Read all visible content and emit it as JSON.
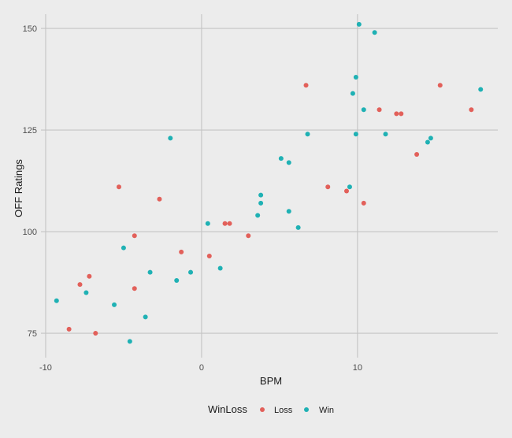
{
  "chart_data": {
    "type": "scatter",
    "title": "",
    "xlabel": "BPM",
    "ylabel": "OFF Ratings",
    "xlim": [
      -10.3,
      19
    ],
    "ylim": [
      69,
      153.5
    ],
    "x_ticks": [
      -10,
      0,
      10
    ],
    "y_ticks": [
      75,
      100,
      125,
      150
    ],
    "grid": true,
    "legend": {
      "title": "WinLoss",
      "position": "bottom"
    },
    "series": [
      {
        "name": "Loss",
        "color": "#e2605a",
        "points": [
          {
            "x": -8.5,
            "y": 76
          },
          {
            "x": -6.8,
            "y": 75
          },
          {
            "x": -7.8,
            "y": 87
          },
          {
            "x": -7.2,
            "y": 89
          },
          {
            "x": -4.3,
            "y": 86
          },
          {
            "x": -4.3,
            "y": 99
          },
          {
            "x": -1.3,
            "y": 95
          },
          {
            "x": -5.3,
            "y": 111
          },
          {
            "x": -2.7,
            "y": 108
          },
          {
            "x": 0.5,
            "y": 94
          },
          {
            "x": 1.5,
            "y": 102
          },
          {
            "x": 1.8,
            "y": 102
          },
          {
            "x": 3.0,
            "y": 99
          },
          {
            "x": 6.7,
            "y": 136
          },
          {
            "x": 8.1,
            "y": 111
          },
          {
            "x": 9.3,
            "y": 110
          },
          {
            "x": 10.4,
            "y": 107
          },
          {
            "x": 11.4,
            "y": 130
          },
          {
            "x": 12.5,
            "y": 129
          },
          {
            "x": 12.8,
            "y": 129
          },
          {
            "x": 13.8,
            "y": 119
          },
          {
            "x": 15.3,
            "y": 136
          },
          {
            "x": 17.3,
            "y": 130
          }
        ]
      },
      {
        "name": "Win",
        "color": "#1fb1b4",
        "points": [
          {
            "x": -9.3,
            "y": 83
          },
          {
            "x": -7.4,
            "y": 85
          },
          {
            "x": -5.6,
            "y": 82
          },
          {
            "x": -5.0,
            "y": 96
          },
          {
            "x": -3.6,
            "y": 79
          },
          {
            "x": -4.6,
            "y": 73
          },
          {
            "x": -3.3,
            "y": 90
          },
          {
            "x": -2.0,
            "y": 123
          },
          {
            "x": -1.6,
            "y": 88
          },
          {
            "x": -0.7,
            "y": 90
          },
          {
            "x": 0.4,
            "y": 102
          },
          {
            "x": 1.2,
            "y": 91
          },
          {
            "x": 3.6,
            "y": 104
          },
          {
            "x": 3.8,
            "y": 107
          },
          {
            "x": 3.8,
            "y": 109
          },
          {
            "x": 5.1,
            "y": 118
          },
          {
            "x": 5.6,
            "y": 117
          },
          {
            "x": 5.6,
            "y": 105
          },
          {
            "x": 6.2,
            "y": 101
          },
          {
            "x": 6.8,
            "y": 124
          },
          {
            "x": 9.5,
            "y": 111
          },
          {
            "x": 9.7,
            "y": 134
          },
          {
            "x": 9.9,
            "y": 138
          },
          {
            "x": 9.9,
            "y": 124
          },
          {
            "x": 10.1,
            "y": 151
          },
          {
            "x": 10.4,
            "y": 130
          },
          {
            "x": 11.1,
            "y": 149
          },
          {
            "x": 11.8,
            "y": 124
          },
          {
            "x": 14.5,
            "y": 122
          },
          {
            "x": 14.7,
            "y": 123
          },
          {
            "x": 17.9,
            "y": 135
          }
        ]
      }
    ]
  }
}
